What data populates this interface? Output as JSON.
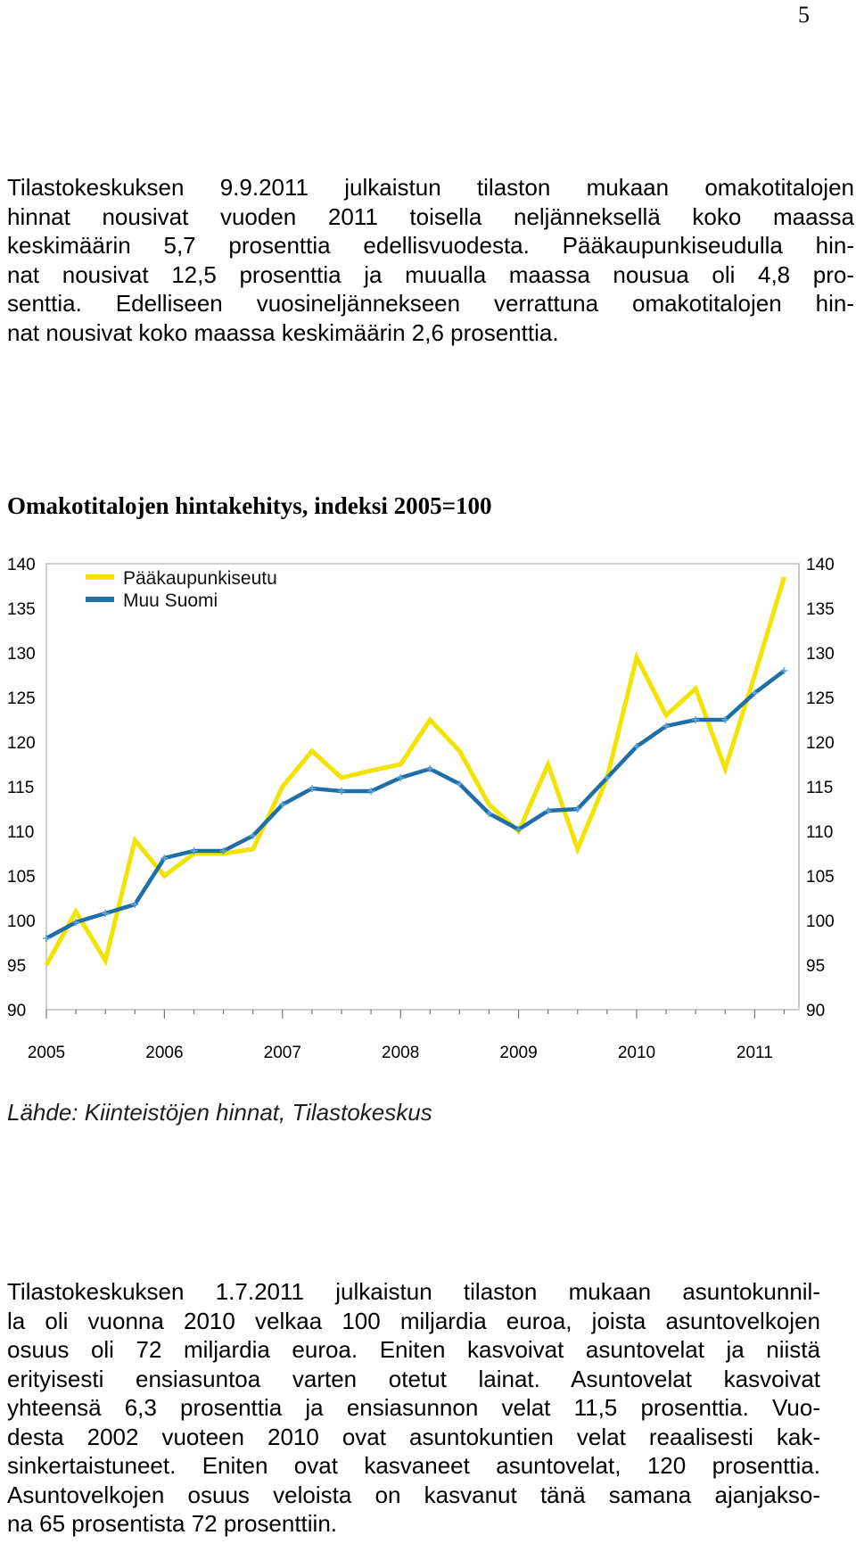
{
  "page_number": "5",
  "paragraph1": {
    "lines": [
      "Tilastokeskuksen 9.9.2011 julkaistun tilaston mukaan omakotitalojen",
      "hinnat nousivat vuoden 2011 toisella neljänneksellä koko maassa",
      "keskimäärin 5,7 prosenttia edellisvuodesta. Pääkaupunkiseudulla hin-",
      "nat nousivat 12,5 prosenttia ja muualla maassa nousua oli 4,8 pro-",
      "senttia. Edelliseen vuosineljännekseen verrattuna omakotitalojen hin-",
      "nat nousivat koko maassa keskimäärin 2,6 prosenttia."
    ]
  },
  "chart_title": "Omakotitalojen hintakehitys, indeksi 2005=100",
  "source_note": "Lähde: Kiinteistöjen hinnat, Tilastokeskus",
  "paragraph2": {
    "lines": [
      "Tilastokeskuksen 1.7.2011 julkaistun tilaston mukaan asuntokunnil-",
      "la oli vuonna 2010 velkaa 100 miljardia euroa, joista asuntovelkojen",
      "osuus oli 72 miljardia euroa. Eniten kasvoivat asuntovelat ja niistä",
      "erityisesti ensiasuntoa varten otetut lainat. Asuntovelat kasvoivat",
      "yhteensä 6,3 prosenttia ja ensiasunnon velat 11,5 prosenttia. Vuo-",
      "desta 2002 vuoteen 2010 ovat asuntokuntien velat reaalisesti kak-",
      "sinkertaistuneet. Eniten ovat kasvaneet asuntovelat, 120 prosenttia.",
      "Asuntovelkojen osuus veloista on kasvanut tänä samana ajanjakso-",
      "na 65 prosentista 72 prosenttiin."
    ]
  },
  "chart_data": {
    "type": "line",
    "title": "Omakotitalojen hintakehitys, indeksi 2005=100",
    "x_tick_labels": [
      "2005",
      "2006",
      "2007",
      "2008",
      "2009",
      "2010",
      "2011"
    ],
    "y_ticks": [
      "90",
      "95",
      "100",
      "105",
      "110",
      "115",
      "120",
      "125",
      "130",
      "135",
      "140"
    ],
    "ylim": [
      90,
      140
    ],
    "legend_position": "top-left",
    "grid": false,
    "x": [
      "2005Q1",
      "2005Q2",
      "2005Q3",
      "2005Q4",
      "2006Q1",
      "2006Q2",
      "2006Q3",
      "2006Q4",
      "2007Q1",
      "2007Q2",
      "2007Q3",
      "2007Q4",
      "2008Q1",
      "2008Q2",
      "2008Q3",
      "2008Q4",
      "2009Q1",
      "2009Q2",
      "2009Q3",
      "2009Q4",
      "2010Q1",
      "2010Q2",
      "2010Q3",
      "2010Q4",
      "2011Q1",
      "2011Q2"
    ],
    "series": [
      {
        "name": "Pääkaupunkiseutu",
        "color": "#f2e400",
        "values": [
          95,
          101,
          95.5,
          109,
          105,
          107.5,
          107.5,
          108,
          115,
          119,
          116,
          116.8,
          117.5,
          122.5,
          119,
          113,
          110,
          117.5,
          108,
          116,
          129.5,
          123,
          126,
          117,
          127.5,
          138.5
        ]
      },
      {
        "name": "Muu Suomi",
        "color": "#1f6ea8",
        "values": [
          98,
          99.8,
          100.8,
          101.8,
          107,
          107.8,
          107.8,
          109.5,
          113,
          114.8,
          114.5,
          114.5,
          116,
          117,
          115.3,
          112,
          110.2,
          112.3,
          112.5,
          116,
          119.5,
          121.8,
          122.5,
          122.5,
          125.5,
          128
        ]
      }
    ]
  }
}
